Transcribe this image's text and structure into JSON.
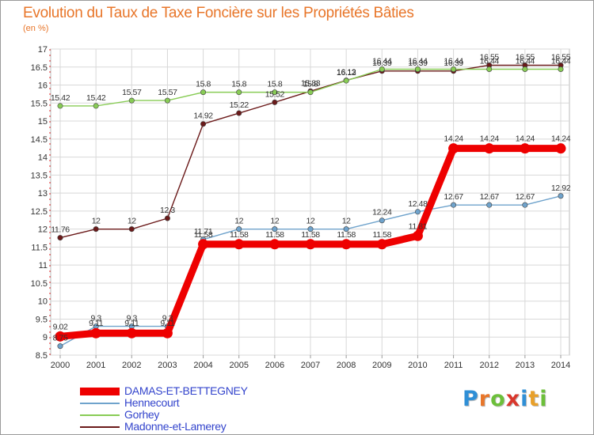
{
  "title": "Evolution du Taux de Taxe Foncière sur les Propriétés Bâties",
  "subtitle": "(en %)",
  "logo": {
    "text": "Proxiti",
    "letters": [
      {
        "ch": "P",
        "color": "#2f8fd6"
      },
      {
        "ch": "r",
        "color": "#e8762a"
      },
      {
        "ch": "o",
        "color": "#6cbf3a"
      },
      {
        "ch": "x",
        "color": "#d9372c"
      },
      {
        "ch": "i",
        "color": "#2f8fd6"
      },
      {
        "ch": "t",
        "color": "#e8a02a"
      },
      {
        "ch": "i",
        "color": "#6cbf3a"
      }
    ]
  },
  "chart_data": {
    "type": "line",
    "title": "Evolution du Taux de Taxe Foncière sur les Propriétés Bâties",
    "ylabel": "(en %)",
    "xlabel": "",
    "ylim": [
      8.5,
      17
    ],
    "yticks": [
      "8.5",
      "9",
      "9.5",
      "10",
      "10.5",
      "11",
      "11.5",
      "12",
      "12.5",
      "13",
      "13.5",
      "14",
      "14.5",
      "15",
      "15.5",
      "16",
      "16.5",
      "17"
    ],
    "categories": [
      "2000",
      "2001",
      "2002",
      "2003",
      "2004",
      "2005",
      "2006",
      "2007",
      "2008",
      "2009",
      "2010",
      "2011",
      "2012",
      "2013",
      "2014"
    ],
    "grid": true,
    "series": [
      {
        "name": "Madonne-et-Lamerey",
        "color": "#6b1a1a",
        "values": [
          11.76,
          12,
          12,
          12.3,
          14.92,
          15.22,
          15.52,
          15.83,
          16.13,
          16.39,
          16.39,
          16.39,
          16.55,
          16.55,
          16.55
        ],
        "labels": [
          "11.76",
          "12",
          "12",
          "12.3",
          "14.92",
          "15.22",
          "15.52",
          "15.83",
          "16.13",
          "16.39",
          "16.39",
          "16.39",
          "16.55",
          "16.55",
          "16.55"
        ]
      },
      {
        "name": "Gorhey",
        "color": "#88cc55",
        "values": [
          15.42,
          15.42,
          15.57,
          15.57,
          15.8,
          15.8,
          15.8,
          15.8,
          16.12,
          16.44,
          16.44,
          16.44,
          16.44,
          16.44,
          16.44
        ],
        "labels": [
          "15.42",
          "15.42",
          "15.57",
          "15.57",
          "15.8",
          "15.8",
          "15.8",
          "15.8",
          "16.12",
          "16.44",
          "16.44",
          "16.44",
          "16.44",
          "16.44",
          "16.44"
        ]
      },
      {
        "name": "Hennecourt",
        "color": "#6fa3cc",
        "values": [
          8.75,
          9.3,
          9.3,
          9.3,
          11.71,
          12,
          12,
          12,
          12,
          12.24,
          12.48,
          12.67,
          12.67,
          12.67,
          12.92
        ],
        "labels": [
          "8.75",
          "9.3",
          "9.3",
          "9.3",
          "11.71",
          "12",
          "12",
          "12",
          "12",
          "12.24",
          "12.48",
          "12.67",
          "12.67",
          "12.67",
          "12.92"
        ]
      },
      {
        "name": "DAMAS-ET-BETTEGNEY",
        "color": "#ee0000",
        "values": [
          9.02,
          9.11,
          9.11,
          9.11,
          11.58,
          11.58,
          11.58,
          11.58,
          11.58,
          11.58,
          11.81,
          14.24,
          14.24,
          14.24,
          14.24
        ],
        "labels": [
          "9.02",
          "9.11",
          "9.11",
          "9.11",
          "11.58",
          "11.58",
          "11.58",
          "11.58",
          "11.58",
          "11.58",
          "11.81",
          "14.24",
          "14.24",
          "14.24",
          "14.24"
        ]
      }
    ],
    "legend": [
      "DAMAS-ET-BETTEGNEY",
      "Hennecourt",
      "Gorhey",
      "Madonne-et-Lamerey"
    ]
  }
}
